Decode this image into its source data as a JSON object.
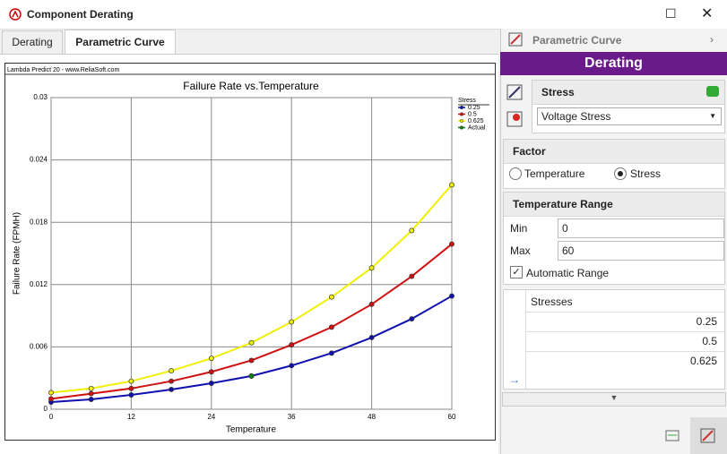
{
  "window": {
    "title": "Component Derating"
  },
  "tabs": [
    "Derating",
    "Parametric Curve"
  ],
  "chart_data": {
    "type": "line",
    "title": "Failure Rate vs.Temperature",
    "watermark": "Lambda Predict 20 - www.ReliaSoft.com",
    "x_label": "Temperature",
    "y_label": "Failure Rate (FPMH)",
    "legend_title": "Stress",
    "legend": "upper right",
    "grid": true,
    "x": [
      0,
      6,
      12,
      18,
      24,
      30,
      36,
      42,
      48,
      54,
      60
    ],
    "xlim": [
      0,
      60
    ],
    "xticks": [
      0,
      12,
      24,
      36,
      48,
      60
    ],
    "ylim": [
      0,
      0.03
    ],
    "yticks": [
      0,
      0.006,
      0.012,
      0.018,
      0.024,
      0.03
    ],
    "series": [
      {
        "name": "0.25",
        "color": "#1010b0",
        "values": [
          0.00069,
          0.00095,
          0.00138,
          0.0019,
          0.0025,
          0.0032,
          0.0042,
          0.0054,
          0.0069,
          0.0087,
          0.0109
        ]
      },
      {
        "name": "0.5",
        "color": "#d01010",
        "values": [
          0.001,
          0.0015,
          0.002,
          0.0027,
          0.0036,
          0.0047,
          0.0062,
          0.0079,
          0.0101,
          0.0128,
          0.0159
        ]
      },
      {
        "name": "0.625",
        "color": "#f0f000",
        "values": [
          0.0016,
          0.002,
          0.0027,
          0.0037,
          0.0049,
          0.0064,
          0.0084,
          0.0108,
          0.0136,
          0.0172,
          0.0216
        ]
      },
      {
        "name": "Actual",
        "color": "#108010",
        "values": [
          null,
          null,
          null,
          null,
          null,
          0.0032,
          null,
          null,
          null,
          null,
          null
        ]
      }
    ]
  },
  "panel": {
    "header": "Parametric Curve",
    "banner": "Derating",
    "stress": {
      "title": "Stress",
      "selected": "Voltage Stress"
    },
    "factor": {
      "title": "Factor",
      "options": [
        "Temperature",
        "Stress"
      ]
    },
    "range": {
      "title": "Temperature Range",
      "min_label": "Min",
      "min": 0,
      "max_label": "Max",
      "max": 60,
      "auto": "Automatic Range"
    },
    "stresses": {
      "header": "Stresses",
      "rows": [
        0.25,
        0.5,
        0.625
      ]
    }
  }
}
